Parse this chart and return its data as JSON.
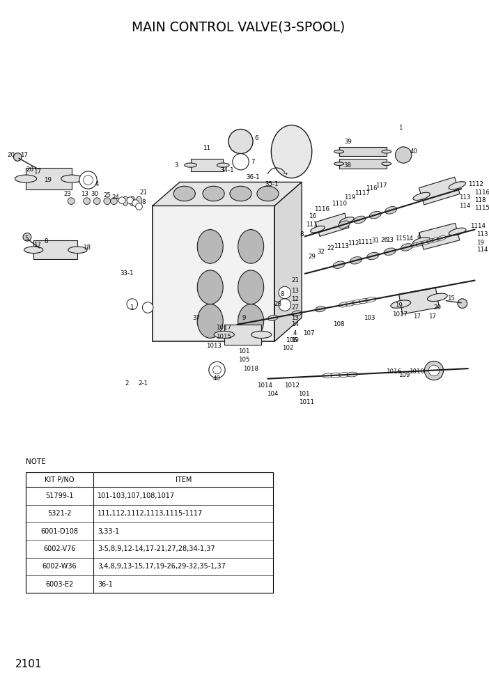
{
  "title": "MAIN CONTROL VALVE(3-SPOOL)",
  "page_number": "2101",
  "note_label": "NOTE",
  "table_headers": [
    "KIT P/NO",
    "ITEM"
  ],
  "table_rows": [
    [
      "51799-1",
      "101-103,107,108,1017"
    ],
    [
      "5321-2",
      "111,112,1112,1113,1115-1117"
    ],
    [
      "6001-D108",
      "3,33-1"
    ],
    [
      "6002-V76",
      "3-5,8,9,12-14,17-21,27,28,34-1,37"
    ],
    [
      "6002-W36",
      "3,4,8,9,13-15,17,19-26,29-32,35-1,37"
    ],
    [
      "6003-E2",
      "36-1"
    ]
  ],
  "bg_color": "#ffffff",
  "ec": "#1a1a1a",
  "title_fontsize": 13,
  "body_fontsize": 7.0,
  "note_fontsize": 7.5,
  "page_fontsize": 11,
  "label_fontsize": 6.2
}
